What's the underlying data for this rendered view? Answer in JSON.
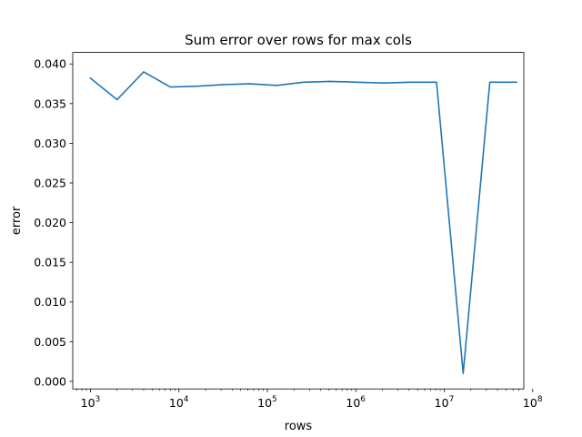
{
  "chart_data": {
    "type": "line",
    "title": "Sum error over rows for max cols",
    "xlabel": "rows",
    "ylabel": "error",
    "xscale": "log",
    "xlim": [
      631,
      79400000
    ],
    "ylim": [
      -0.00095,
      0.04145
    ],
    "grid": false,
    "line_color": "#1f77b4",
    "x_ticks": [
      {
        "value": 1000,
        "base": "10",
        "exp": "3"
      },
      {
        "value": 10000,
        "base": "10",
        "exp": "4"
      },
      {
        "value": 100000,
        "base": "10",
        "exp": "5"
      },
      {
        "value": 1000000,
        "base": "10",
        "exp": "6"
      },
      {
        "value": 10000000,
        "base": "10",
        "exp": "7"
      },
      {
        "value": 100000000,
        "base": "10",
        "exp": "8"
      }
    ],
    "y_ticks": [
      {
        "value": 0.0,
        "label": "0.000"
      },
      {
        "value": 0.005,
        "label": "0.005"
      },
      {
        "value": 0.01,
        "label": "0.010"
      },
      {
        "value": 0.015,
        "label": "0.015"
      },
      {
        "value": 0.02,
        "label": "0.020"
      },
      {
        "value": 0.025,
        "label": "0.025"
      },
      {
        "value": 0.03,
        "label": "0.030"
      },
      {
        "value": 0.035,
        "label": "0.035"
      },
      {
        "value": 0.04,
        "label": "0.040"
      }
    ],
    "series": [
      {
        "x": [
          1000,
          2000,
          4000,
          8000,
          16000,
          32000,
          64000,
          128000,
          256000,
          512000,
          1024000,
          2048000,
          4096000,
          8192000,
          16384000,
          32768000,
          65536000
        ],
        "y": [
          0.0382,
          0.0355,
          0.039,
          0.0371,
          0.0372,
          0.0374,
          0.0375,
          0.0373,
          0.0377,
          0.0378,
          0.0377,
          0.0376,
          0.0377,
          0.0377,
          0.001,
          0.0377,
          0.0377
        ]
      }
    ]
  }
}
